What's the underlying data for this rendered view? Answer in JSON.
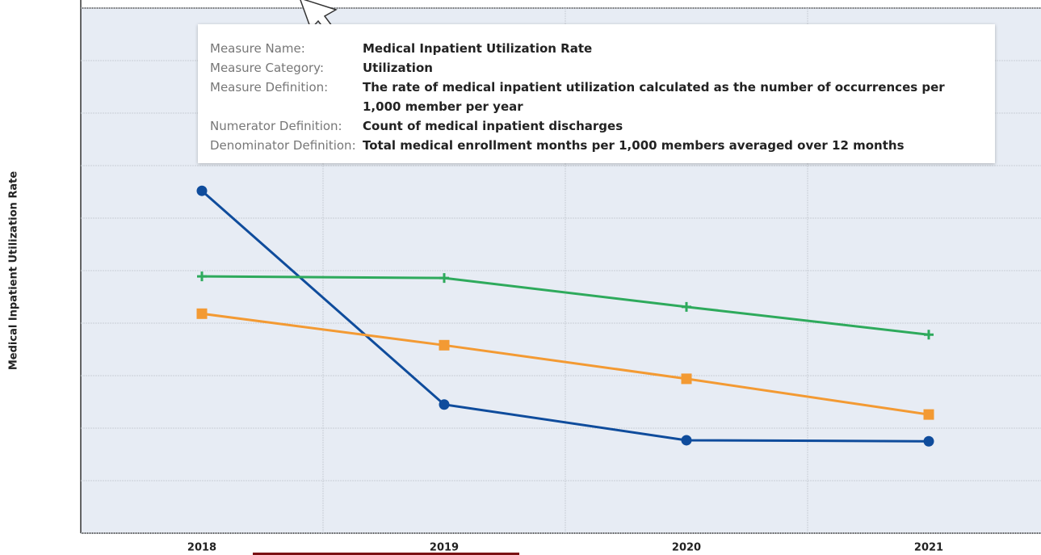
{
  "chart_data": {
    "type": "line",
    "y_label": "Medical Inpatient Utilization Rate",
    "categories": [
      "2018",
      "2019",
      "2020",
      "2021"
    ],
    "series": [
      {
        "color": "#0f4c9c",
        "marker": "circle",
        "values": [
          6.52,
          2.45,
          1.77,
          1.75
        ]
      },
      {
        "color": "#f39a33",
        "marker": "square",
        "values": [
          4.18,
          3.58,
          2.94,
          2.26
        ]
      },
      {
        "color": "#2eaa5c",
        "marker": "plus",
        "values": [
          4.89,
          4.86,
          4.31,
          3.78
        ]
      }
    ],
    "ylim": [
      0,
      10
    ],
    "yticks": [
      0,
      1,
      2,
      3,
      4,
      5,
      6,
      7,
      8,
      9,
      10
    ],
    "grid": true
  },
  "tooltip": {
    "rows": [
      {
        "label": "Measure Name:",
        "value": "Medical Inpatient Utilization Rate"
      },
      {
        "label": "Measure Category:",
        "value": "Utilization"
      },
      {
        "label": "Measure Definition:",
        "value": "The rate of medical inpatient utilization calculated as the number of occurrences per 1,000 member per year"
      },
      {
        "label": "Numerator Definition:",
        "value": "Count of medical inpatient discharges"
      },
      {
        "label": "Denominator Definition:",
        "value": "Total medical enrollment months per 1,000 members averaged over 12 months"
      }
    ]
  }
}
